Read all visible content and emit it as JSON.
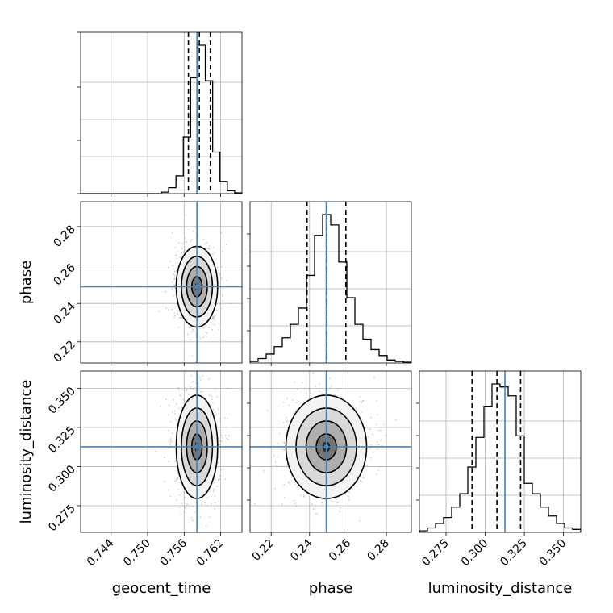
{
  "chart_data": {
    "type": "corner",
    "parameters": [
      "geocent_time",
      "phase",
      "luminosity_distance"
    ],
    "ranges": {
      "geocent_time": [
        0.739,
        0.7655
      ],
      "phase": [
        0.209,
        0.293
      ],
      "luminosity_distance": [
        0.258,
        0.361
      ]
    },
    "ticks": {
      "geocent_time": [
        "0.744",
        "0.750",
        "0.756",
        "0.762"
      ],
      "phase": [
        "0.22",
        "0.24",
        "0.26",
        "0.28"
      ],
      "luminosity_distance": [
        "0.275",
        "0.300",
        "0.325",
        "0.350"
      ]
    },
    "truths": {
      "geocent_time": 0.7581,
      "phase": 0.2487,
      "luminosity_distance": 0.3126
    },
    "quantiles": {
      "geocent_time": [
        0.7567,
        0.7585,
        0.7603
      ],
      "phase": [
        0.2387,
        0.2488,
        0.2589
      ],
      "luminosity_distance": [
        0.2916,
        0.3075,
        0.3226
      ]
    },
    "histograms": {
      "geocent_time": [
        0,
        0,
        0,
        0,
        0,
        0,
        0,
        0,
        0,
        0,
        0,
        0.01,
        0.04,
        0.12,
        0.38,
        0.78,
        1.0,
        0.76,
        0.28,
        0.08,
        0.02,
        0.005
      ],
      "phase": [
        0.01,
        0.03,
        0.06,
        0.11,
        0.17,
        0.26,
        0.37,
        0.59,
        0.86,
        1.0,
        0.93,
        0.68,
        0.44,
        0.26,
        0.16,
        0.09,
        0.05,
        0.02,
        0.01,
        0.005
      ],
      "luminosity_distance": [
        0.01,
        0.03,
        0.06,
        0.1,
        0.17,
        0.26,
        0.44,
        0.64,
        0.85,
        1.0,
        0.98,
        0.92,
        0.65,
        0.33,
        0.26,
        0.17,
        0.11,
        0.06,
        0.03,
        0.02
      ]
    },
    "histogram_bins": {
      "geocent_time": [
        0.739,
        0.7655
      ],
      "phase": [
        0.209,
        0.293
      ],
      "luminosity_distance": [
        0.258,
        0.361
      ]
    },
    "posterior_std": {
      "geocent_time": 0.0017,
      "phase": 0.0105,
      "luminosity_distance": 0.0165
    },
    "colors": {
      "truth": "#4682b4",
      "hist": "#000000",
      "grid": "#b0b0b0",
      "scatter": "#aaaaaa"
    },
    "grid": true
  }
}
